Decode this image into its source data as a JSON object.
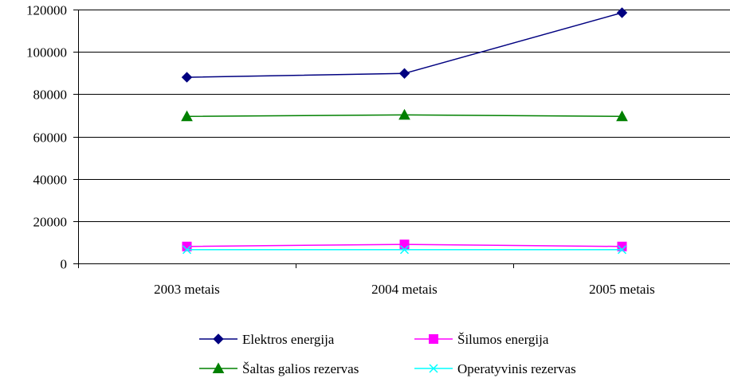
{
  "chart_data": {
    "type": "line",
    "title": "",
    "xlabel": "",
    "ylabel": "",
    "categories": [
      "2003 metais",
      "2004 metais",
      "2005 metais"
    ],
    "ylim": [
      0,
      120000
    ],
    "yticks": [
      0,
      20000,
      40000,
      60000,
      80000,
      100000,
      120000
    ],
    "grid": "horizontal",
    "legend_position": "bottom",
    "series": [
      {
        "name": "Elektros energija",
        "values": [
          88000,
          89800,
          118500
        ],
        "color": "#000080",
        "marker": "diamond"
      },
      {
        "name": "Šilumos energija",
        "values": [
          8000,
          9000,
          8000
        ],
        "color": "#ff00ff",
        "marker": "square"
      },
      {
        "name": "Šaltas galios rezervas",
        "values": [
          69500,
          70200,
          69500
        ],
        "color": "#008000",
        "marker": "triangle"
      },
      {
        "name": "Operatyvinis rezervas",
        "values": [
          6500,
          6500,
          6500
        ],
        "color": "#00ffff",
        "marker": "x"
      }
    ]
  }
}
